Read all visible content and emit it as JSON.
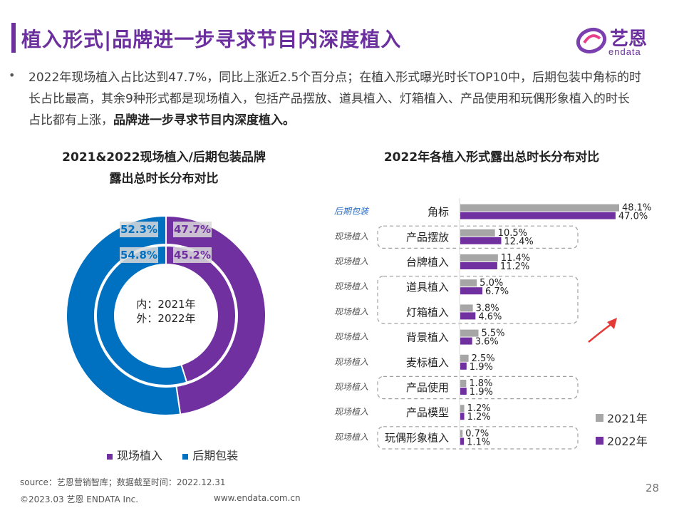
{
  "header": {
    "title": "植入形式|品牌进一步寻求节目内深度植入",
    "logo_name": "艺恩",
    "logo_sub": "endata"
  },
  "summary": {
    "bullet": "•",
    "text": "2022年现场植入占比达到47.7%，同比上涨近2.5个百分点；在植入形式曝光时长TOP10中，后期包装中角标的时长占比最高，其余9种形式都是现场植入，包括产品摆放、道具植入、灯箱植入、产品使用和玩偶形象植入的时长占比都有上涨，",
    "bold_text": "品牌进一步寻求节目内深度植入。"
  },
  "left_chart": {
    "title_line1": "2021&2022现场植入/后期包装品牌",
    "title_line2": "露出总时长分布对比",
    "center_line1": "内：2021年",
    "center_line2": "外：2022年",
    "legend_onsite": "现场植入",
    "legend_post": "后期包装"
  },
  "right_chart": {
    "title": "2022年各植入形式露出总时长分布对比",
    "legend_2021": "2021年",
    "legend_2022": "2022年"
  },
  "chart_data": [
    {
      "type": "pie",
      "variant": "nested-donut",
      "title": "2021&2022现场植入/后期包装品牌露出总时长分布对比",
      "categories": [
        "现场植入",
        "后期包装"
      ],
      "series": [
        {
          "name": "2021年",
          "ring": "inner",
          "values": [
            45.2,
            54.8
          ],
          "labels": [
            "45.2%",
            "54.8%"
          ]
        },
        {
          "name": "2022年",
          "ring": "outer",
          "values": [
            47.7,
            52.3
          ],
          "labels": [
            "47.7%",
            "52.3%"
          ]
        }
      ],
      "colors": {
        "现场植入": "#7030a0",
        "后期包装": "#0070c0"
      }
    },
    {
      "type": "bar",
      "orientation": "horizontal",
      "title": "2022年各植入形式露出总时长分布对比",
      "categories": [
        "角标",
        "产品摆放",
        "台牌植入",
        "道具植入",
        "灯箱植入",
        "背景植入",
        "麦标植入",
        "产品使用",
        "产品模型",
        "玩偶形象植入"
      ],
      "groups": [
        "后期包装",
        "现场植入",
        "现场植入",
        "现场植入",
        "现场植入",
        "现场植入",
        "现场植入",
        "现场植入",
        "现场植入",
        "现场植入"
      ],
      "highlighted": [
        "产品摆放",
        "道具植入",
        "灯箱植入",
        "产品使用",
        "玩偶形象植入"
      ],
      "series": [
        {
          "name": "2021年",
          "values": [
            48.1,
            10.5,
            11.4,
            5.0,
            3.8,
            5.5,
            2.5,
            1.8,
            1.2,
            0.7
          ],
          "labels": [
            "48.1%",
            "10.5%",
            "11.4%",
            "5.0%",
            "3.8%",
            "5.5%",
            "2.5%",
            "1.8%",
            "1.2%",
            "0.7%"
          ]
        },
        {
          "name": "2022年",
          "values": [
            47.0,
            12.4,
            11.2,
            6.7,
            4.6,
            3.6,
            1.9,
            1.9,
            1.2,
            1.1
          ],
          "labels": [
            "47.0%",
            "12.4%",
            "11.2%",
            "6.7%",
            "4.6%",
            "3.6%",
            "1.9%",
            "1.9%",
            "1.2%",
            "1.1%"
          ]
        }
      ],
      "colors": {
        "2021年": "#a6a6a6",
        "2022年": "#7030a0"
      },
      "xlim": [
        0,
        48.1
      ]
    }
  ],
  "footer": {
    "source": "source：艺恩营销智库；数据截至时间：2022.12.31",
    "copyright": "©2023.03 艺恩 ENDATA Inc.",
    "website": "www.endata.com.cn",
    "page": "28"
  }
}
